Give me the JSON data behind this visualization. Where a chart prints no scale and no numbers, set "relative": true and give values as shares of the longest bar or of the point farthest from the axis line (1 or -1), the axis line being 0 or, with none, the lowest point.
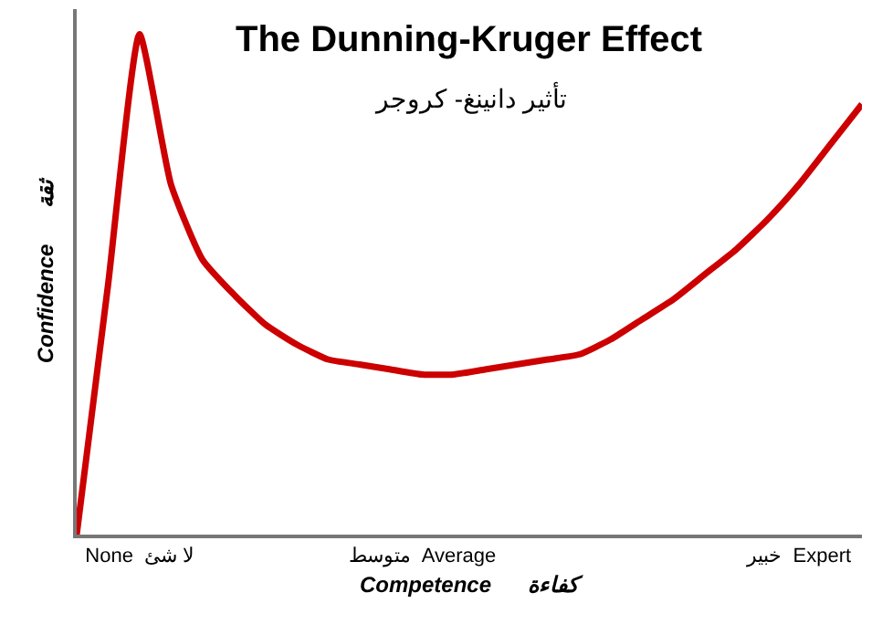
{
  "chart_data": {
    "type": "line",
    "title": "The Dunning-Kruger Effect",
    "subtitle": "تأثير دانينغ- كروجر",
    "xlabel": "Competence      كفاءة",
    "ylabel": "Confidence      ثقة",
    "relative": true,
    "tick_labels": "x",
    "marker": "none",
    "line_style": "solid",
    "categories": [
      null,
      null,
      "None  لا شئ",
      null,
      null,
      null,
      null,
      null,
      null,
      null,
      null,
      "متوسط  Average",
      null,
      null,
      null,
      null,
      null,
      null,
      null,
      null,
      null,
      null,
      null,
      "خبير  Expert",
      null,
      null
    ],
    "series": [
      {
        "color": "#cc0000",
        "values": [
          0,
          0.5,
          1.0,
          0.7,
          0.55,
          0.48,
          0.42,
          0.38,
          0.35,
          0.34,
          0.33,
          0.32,
          0.32,
          0.33,
          0.34,
          0.35,
          0.36,
          0.39,
          0.43,
          0.47,
          0.52,
          0.57,
          0.63,
          0.7,
          0.78,
          0.86
        ]
      }
    ]
  }
}
